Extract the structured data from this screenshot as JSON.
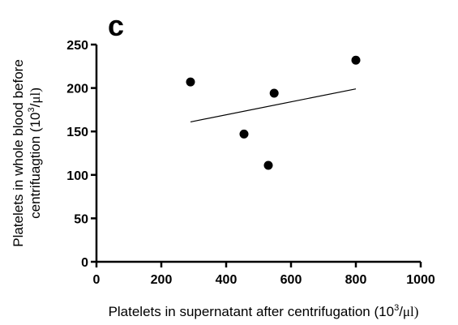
{
  "panel_label": "c",
  "chart_data": {
    "type": "scatter",
    "xlim": [
      0,
      1000
    ],
    "ylim": [
      0,
      250
    ],
    "x_ticks": [
      0,
      200,
      400,
      600,
      800,
      1000
    ],
    "y_ticks": [
      0,
      50,
      100,
      150,
      200,
      250
    ],
    "x_tick_labels": [
      "0",
      "200",
      "400",
      "600",
      "800",
      "1000"
    ],
    "y_tick_labels": [
      "0",
      "50",
      "100",
      "150",
      "200",
      "250"
    ],
    "xlabel": {
      "main": "Platelets in supernatant after centrifugation (10",
      "sup": "3",
      "tail": "/",
      "mu": "μl)"
    },
    "ylabel": {
      "line1": "Platelets in whole blood before",
      "line2": "centrifuagtion (10",
      "sup": "3",
      "tail": "/",
      "mu": "μl)"
    },
    "points": [
      {
        "x": 290,
        "y": 207
      },
      {
        "x": 455,
        "y": 147
      },
      {
        "x": 530,
        "y": 111
      },
      {
        "x": 548,
        "y": 194
      },
      {
        "x": 800,
        "y": 232
      }
    ],
    "regression_line": {
      "x": [
        290,
        800
      ],
      "y": [
        161,
        199
      ]
    },
    "grid": false,
    "legend": "none"
  }
}
